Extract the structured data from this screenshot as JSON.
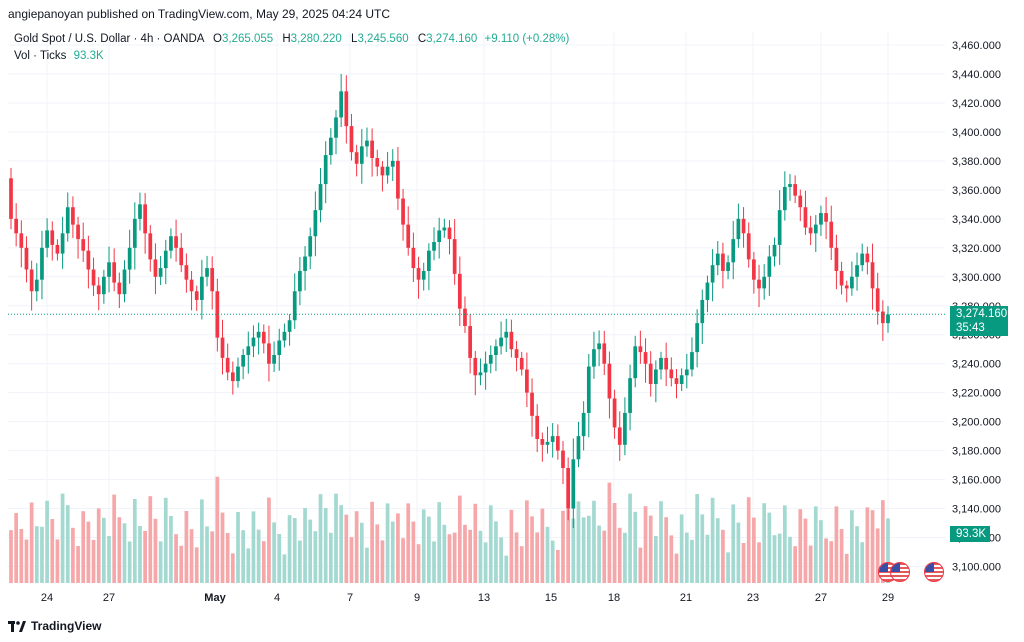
{
  "header": {
    "published_by": "angiepanoyan published on TradingView.com, May 29, 2025 04:24 UTC"
  },
  "legend": {
    "symbol": "Gold Spot / U.S. Dollar · 4h · OANDA",
    "open_label": "O",
    "open": "3,265.055",
    "high_label": "H",
    "high": "3,280.220",
    "low_label": "L",
    "low": "3,245.560",
    "close_label": "C",
    "close": "3,274.160",
    "change": "+9.110 (+0.28%)",
    "volume_label": "Vol · Ticks",
    "volume_value": "93.3K"
  },
  "price_tag": {
    "price": "3,274.160",
    "countdown": "35:43"
  },
  "volume_tag": "93.3K",
  "footer": {
    "brand": "TradingView"
  },
  "colors": {
    "up": "#089981",
    "down": "#f23645",
    "vol_up": "#a3d9d1",
    "vol_down": "#f5a7a9",
    "grid": "#f0f3fa"
  },
  "chart_data": {
    "type": "candlestick",
    "title": "Gold Spot / U.S. Dollar · 4h · OANDA",
    "yaxis": {
      "ticks": [
        "3,460.000",
        "3,440.000",
        "3,420.000",
        "3,400.000",
        "3,380.000",
        "3,360.000",
        "3,340.000",
        "3,320.000",
        "3,300.000",
        "3,280.000",
        "3,260.000",
        "3,240.000",
        "3,220.000",
        "3,200.000",
        "3,180.000",
        "3,160.000",
        "3,140.000",
        "3,120.000",
        "3,100.000"
      ],
      "ylim": [
        3090,
        3470
      ]
    },
    "xaxis": {
      "ticks": [
        "24",
        "27",
        "May",
        "4",
        "7",
        "9",
        "13",
        "15",
        "18",
        "21",
        "23",
        "27",
        "29"
      ]
    },
    "grid": true,
    "last_price": 3274.16,
    "closes": [
      3340,
      3330,
      3320,
      3305,
      3290,
      3298,
      3320,
      3332,
      3322,
      3316,
      3330,
      3348,
      3336,
      3326,
      3318,
      3305,
      3294,
      3288,
      3300,
      3310,
      3296,
      3288,
      3305,
      3320,
      3340,
      3350,
      3330,
      3312,
      3300,
      3306,
      3318,
      3328,
      3320,
      3308,
      3298,
      3290,
      3284,
      3300,
      3306,
      3290,
      3258,
      3244,
      3234,
      3228,
      3238,
      3246,
      3252,
      3258,
      3262,
      3254,
      3240,
      3246,
      3256,
      3262,
      3270,
      3290,
      3304,
      3314,
      3328,
      3346,
      3364,
      3384,
      3396,
      3410,
      3428,
      3404,
      3386,
      3378,
      3390,
      3394,
      3382,
      3376,
      3370,
      3376,
      3380,
      3354,
      3336,
      3320,
      3306,
      3298,
      3304,
      3318,
      3324,
      3332,
      3334,
      3326,
      3302,
      3278,
      3266,
      3244,
      3232,
      3234,
      3240,
      3246,
      3252,
      3258,
      3262,
      3250,
      3244,
      3236,
      3220,
      3204,
      3188,
      3184,
      3186,
      3190,
      3180,
      3168,
      3140,
      3174,
      3190,
      3206,
      3238,
      3250,
      3254,
      3240,
      3216,
      3196,
      3184,
      3206,
      3230,
      3252,
      3248,
      3240,
      3226,
      3236,
      3244,
      3236,
      3230,
      3226,
      3232,
      3236,
      3248,
      3268,
      3284,
      3296,
      3308,
      3316,
      3304,
      3310,
      3326,
      3340,
      3330,
      3312,
      3298,
      3292,
      3300,
      3314,
      3322,
      3346,
      3362,
      3364,
      3356,
      3348,
      3334,
      3330,
      3336,
      3344,
      3338,
      3320,
      3304,
      3294,
      3292,
      3300,
      3308,
      3316,
      3310,
      3292,
      3276,
      3268,
      3274
    ]
  }
}
